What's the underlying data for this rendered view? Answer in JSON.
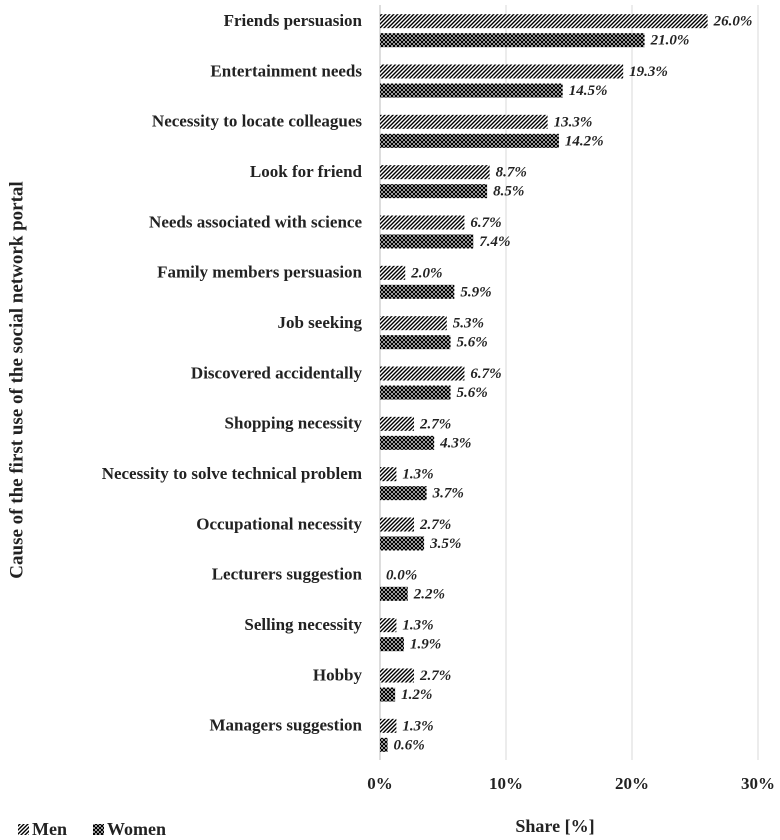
{
  "chart_data": {
    "type": "bar",
    "orientation": "horizontal",
    "x_label": "Share [%]",
    "y_label": "Cause of the first use of the social network portal",
    "categories": [
      "Friends persuasion",
      "Entertainment needs",
      "Necessity to locate colleagues",
      "Look for friend",
      "Needs associated with science",
      "Family members persuasion",
      "Job seeking",
      "Discovered accidentally",
      "Shopping necessity",
      "Necessity to solve technical problem",
      "Occupational necessity",
      "Lecturers suggestion",
      "Selling necessity",
      "Hobby",
      "Managers suggestion"
    ],
    "series": [
      {
        "name": "Men",
        "color": "#000000",
        "pattern": "diagonal",
        "values": [
          26.0,
          19.3,
          13.3,
          8.7,
          6.7,
          2.0,
          5.3,
          6.7,
          2.7,
          1.3,
          2.7,
          0.0,
          1.3,
          2.7,
          1.3
        ],
        "value_labels": [
          "26.0%",
          "19.3%",
          "13.3%",
          "8.7%",
          "6.7%",
          "2.0%",
          "5.3%",
          "6.7%",
          "2.7%",
          "1.3%",
          "2.7%",
          "0.0%",
          "1.3%",
          "2.7%",
          "1.3%"
        ]
      },
      {
        "name": "Women",
        "color": "#000000",
        "pattern": "crosshatch",
        "values": [
          21.0,
          14.5,
          14.2,
          8.5,
          7.4,
          5.9,
          5.6,
          5.6,
          4.3,
          3.7,
          3.5,
          2.2,
          1.9,
          1.2,
          0.6
        ],
        "value_labels": [
          "21.0%",
          "14.5%",
          "14.2%",
          "8.5%",
          "7.4%",
          "5.9%",
          "5.6%",
          "5.6%",
          "4.3%",
          "3.7%",
          "3.5%",
          "2.2%",
          "1.9%",
          "1.2%",
          "0.6%"
        ]
      }
    ],
    "xlim": [
      0,
      30
    ],
    "xticks": [
      {
        "value": 0,
        "label": "0%"
      },
      {
        "value": 10,
        "label": "10%"
      },
      {
        "value": 20,
        "label": "20%"
      },
      {
        "value": 30,
        "label": "30%"
      }
    ],
    "grid": true,
    "legend": "bottom-left"
  }
}
